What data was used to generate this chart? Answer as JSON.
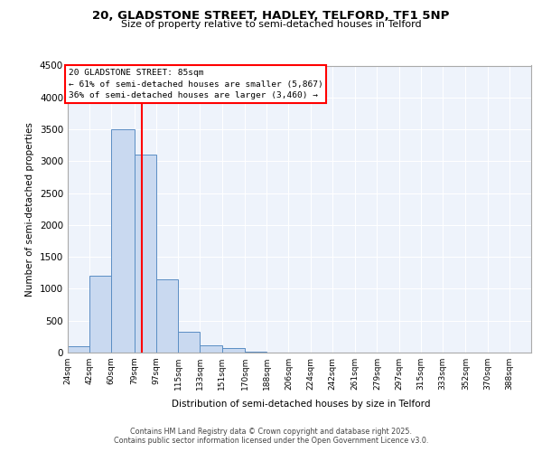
{
  "title_line1": "20, GLADSTONE STREET, HADLEY, TELFORD, TF1 5NP",
  "title_line2": "Size of property relative to semi-detached houses in Telford",
  "xlabel": "Distribution of semi-detached houses by size in Telford",
  "ylabel": "Number of semi-detached properties",
  "bin_labels": [
    "24sqm",
    "42sqm",
    "60sqm",
    "79sqm",
    "97sqm",
    "115sqm",
    "133sqm",
    "151sqm",
    "170sqm",
    "188sqm",
    "206sqm",
    "224sqm",
    "242sqm",
    "261sqm",
    "279sqm",
    "297sqm",
    "315sqm",
    "333sqm",
    "352sqm",
    "370sqm",
    "388sqm"
  ],
  "bar_values": [
    100,
    1200,
    3500,
    3100,
    1150,
    330,
    115,
    65,
    10,
    0,
    0,
    0,
    0,
    0,
    0,
    0,
    0,
    0,
    0,
    0,
    0
  ],
  "bar_color": "#c9d9f0",
  "bar_edge_color": "#5b8ec4",
  "ylim": [
    0,
    4500
  ],
  "yticks": [
    0,
    500,
    1000,
    1500,
    2000,
    2500,
    3000,
    3500,
    4000,
    4500
  ],
  "red_line_x": 85,
  "bin_edges": [
    24,
    42,
    60,
    79,
    97,
    115,
    133,
    151,
    170,
    188,
    206,
    224,
    242,
    261,
    279,
    297,
    315,
    333,
    352,
    370,
    388
  ],
  "annotation_title": "20 GLADSTONE STREET: 85sqm",
  "annotation_line1": "← 61% of semi-detached houses are smaller (5,867)",
  "annotation_line2": "36% of semi-detached houses are larger (3,460) →",
  "footer_line1": "Contains HM Land Registry data © Crown copyright and database right 2025.",
  "footer_line2": "Contains public sector information licensed under the Open Government Licence v3.0.",
  "background_color": "#eef3fb",
  "grid_color": "#ffffff",
  "fig_bg_color": "#ffffff"
}
